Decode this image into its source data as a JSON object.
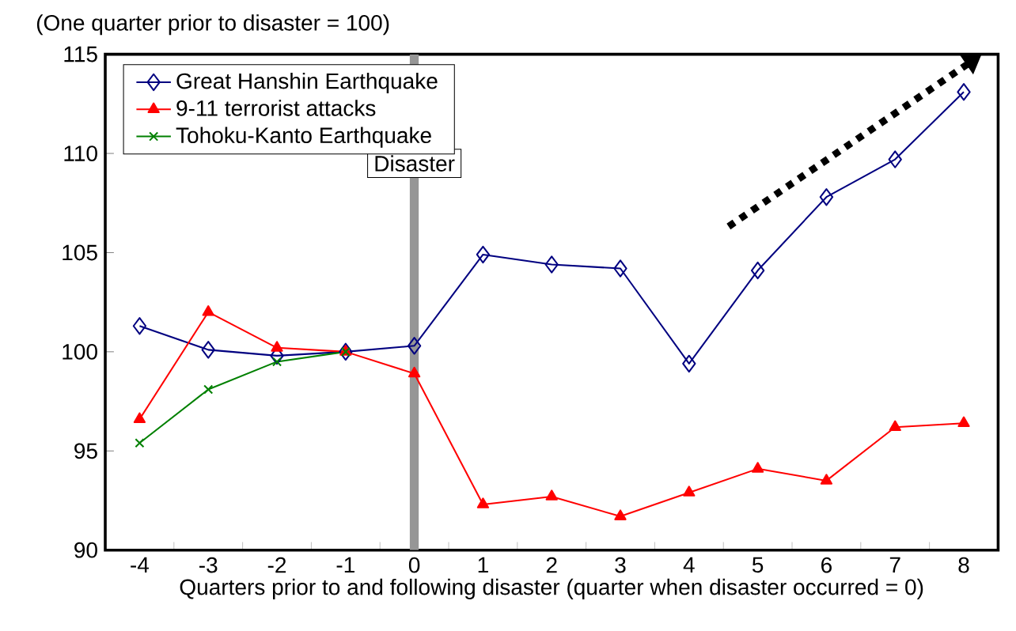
{
  "chart_data": {
    "type": "line",
    "ylabel": "(One quarter prior to disaster = 100)",
    "xlabel": "Quarters prior to and following disaster (quarter when disaster occurred = 0)",
    "x": [
      -4,
      -3,
      -2,
      -1,
      0,
      1,
      2,
      3,
      4,
      5,
      6,
      7,
      8
    ],
    "series": [
      {
        "name": "Great Hanshin Earthquake",
        "color": "#000080",
        "marker": "diamond",
        "values": [
          101.3,
          100.1,
          99.8,
          100.0,
          100.3,
          104.9,
          104.4,
          104.2,
          99.4,
          104.1,
          107.8,
          109.7,
          113.1
        ]
      },
      {
        "name": "9-11 terrorist attacks",
        "color": "#ff0000",
        "marker": "triangle",
        "values": [
          96.6,
          102.0,
          100.2,
          100.0,
          98.9,
          92.3,
          92.7,
          91.7,
          92.9,
          94.1,
          93.5,
          96.2,
          96.4
        ]
      },
      {
        "name": "Tohoku-Kanto Earthquake",
        "color": "#008000",
        "marker": "cross",
        "values": [
          95.4,
          98.1,
          99.5,
          100.0,
          null,
          null,
          null,
          null,
          null,
          null,
          null,
          null,
          null
        ]
      }
    ],
    "xlim": [
      -4.5,
      8.5
    ],
    "xticks": [
      -4,
      -3,
      -2,
      -1,
      0,
      1,
      2,
      3,
      4,
      5,
      6,
      7,
      8
    ],
    "ylim": [
      90,
      115
    ],
    "yticks": [
      90,
      95,
      100,
      105,
      110,
      115
    ],
    "ref_lines": [
      {
        "axis": "x",
        "value": 0,
        "label": "Disaster",
        "color": "#969696"
      }
    ],
    "legend": "top left",
    "grid": false
  }
}
